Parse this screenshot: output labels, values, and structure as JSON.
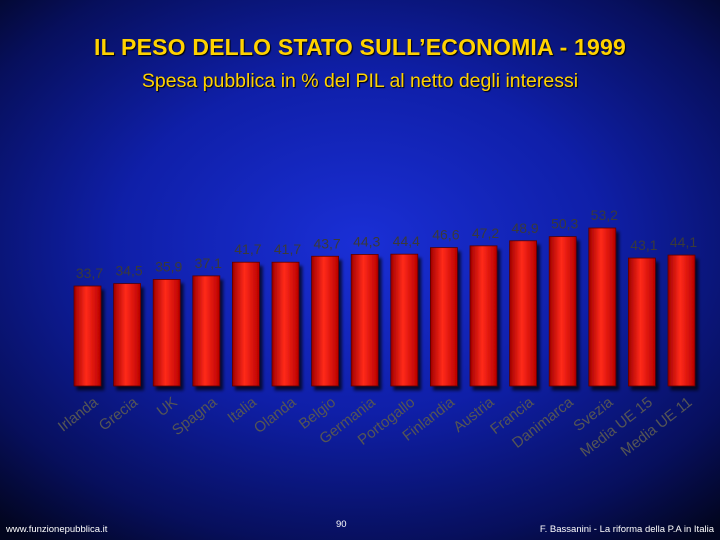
{
  "title": "IL PESO DELLO STATO SULL’ECONOMIA - 1999",
  "subtitle": "Spesa pubblica in % del PIL al netto degli interessi",
  "footer": {
    "left": "www.funzionepubblica.it",
    "page": "90",
    "right": "F. Bassanini - La riforma della P.A in Italia"
  },
  "colors": {
    "background": "#0f1fa8",
    "bar": "#e01010",
    "value_label": "#3a3a3a",
    "category_label": "#555555",
    "title": "#ffd200"
  },
  "chart_data": {
    "type": "bar",
    "title": "",
    "xlabel": "",
    "ylabel": "",
    "categories": [
      "Irlanda",
      "Grecia",
      "UK",
      "Spagna",
      "Italia",
      "Olanda",
      "Belgio",
      "Germania",
      "Portogallo",
      "Finlandia",
      "Austria",
      "Francia",
      "Danimarca",
      "Svezia",
      "Media UE 15",
      "Media UE 11"
    ],
    "values": [
      33.7,
      34.5,
      35.9,
      37.1,
      41.7,
      41.7,
      43.7,
      44.3,
      44.4,
      46.6,
      47.2,
      48.9,
      50.3,
      53.2,
      43.1,
      44.1
    ],
    "value_labels": [
      "33,7",
      "34,5",
      "35,9",
      "37,1",
      "41,7",
      "41,7",
      "43,7",
      "44,3",
      "44,4",
      "46,6",
      "47,2",
      "48,9",
      "50,3",
      "53,2",
      "43,1",
      "44,1"
    ],
    "grid": false,
    "legend": "none"
  }
}
